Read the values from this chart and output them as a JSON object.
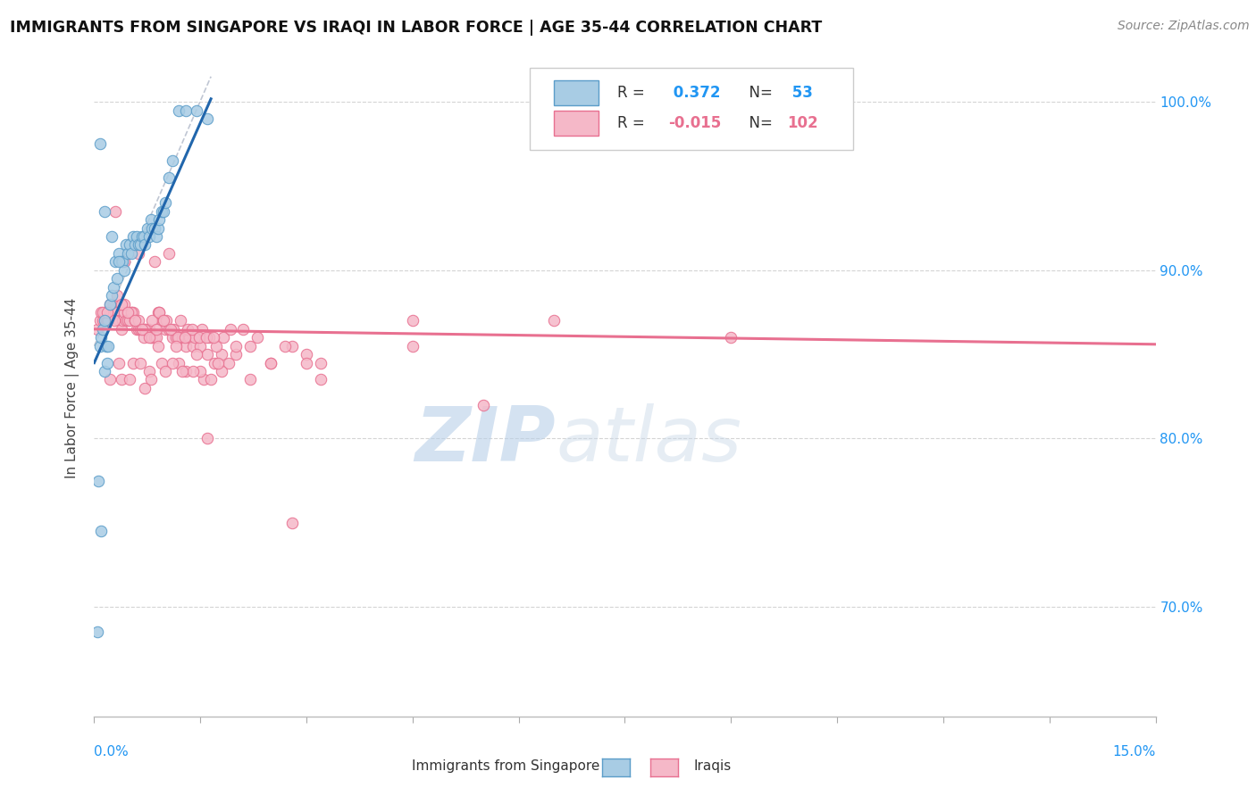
{
  "title": "IMMIGRANTS FROM SINGAPORE VS IRAQI IN LABOR FORCE | AGE 35-44 CORRELATION CHART",
  "source": "Source: ZipAtlas.com",
  "ylabel": "In Labor Force | Age 35-44",
  "xmin": 0.0,
  "xmax": 15.0,
  "ymin": 63.5,
  "ymax": 102.5,
  "yticks": [
    70.0,
    80.0,
    90.0,
    100.0
  ],
  "ytick_labels": [
    "70.0%",
    "80.0%",
    "90.0%",
    "100.0%"
  ],
  "sg_r": "0.372",
  "sg_n": "53",
  "iq_r": "-0.015",
  "iq_n": "102",
  "sg_face_color": "#a8cce4",
  "sg_edge_color": "#5b9dc9",
  "iq_face_color": "#f5b8c8",
  "iq_edge_color": "#e87090",
  "sg_line_color": "#2166ac",
  "iq_line_color": "#e87090",
  "watermark_zip": "ZIP",
  "watermark_atlas": "atlas",
  "sg_x": [
    0.05,
    0.08,
    0.1,
    0.12,
    0.14,
    0.15,
    0.17,
    0.18,
    0.2,
    0.22,
    0.25,
    0.27,
    0.3,
    0.32,
    0.35,
    0.38,
    0.4,
    0.42,
    0.45,
    0.48,
    0.5,
    0.52,
    0.55,
    0.58,
    0.6,
    0.62,
    0.65,
    0.68,
    0.7,
    0.72,
    0.75,
    0.78,
    0.8,
    0.82,
    0.85,
    0.88,
    0.9,
    0.92,
    0.95,
    0.98,
    1.0,
    1.05,
    1.1,
    1.2,
    1.3,
    1.45,
    1.6,
    0.15,
    0.25,
    0.35,
    0.08,
    0.06,
    0.1
  ],
  "sg_y": [
    68.5,
    85.5,
    86.0,
    86.5,
    87.0,
    84.0,
    85.5,
    84.5,
    85.5,
    88.0,
    88.5,
    89.0,
    90.5,
    89.5,
    91.0,
    90.5,
    90.5,
    90.0,
    91.5,
    91.0,
    91.5,
    91.0,
    92.0,
    91.5,
    92.0,
    91.5,
    91.5,
    92.0,
    92.0,
    91.5,
    92.5,
    92.0,
    93.0,
    92.5,
    92.5,
    92.0,
    92.5,
    93.0,
    93.5,
    93.5,
    94.0,
    95.5,
    96.5,
    99.5,
    99.5,
    99.5,
    99.0,
    93.5,
    92.0,
    90.5,
    97.5,
    77.5,
    74.5
  ],
  "iq_x": [
    0.05,
    0.08,
    0.1,
    0.12,
    0.14,
    0.15,
    0.17,
    0.18,
    0.2,
    0.22,
    0.25,
    0.27,
    0.3,
    0.32,
    0.35,
    0.38,
    0.4,
    0.42,
    0.45,
    0.48,
    0.5,
    0.52,
    0.55,
    0.58,
    0.6,
    0.62,
    0.65,
    0.68,
    0.7,
    0.72,
    0.75,
    0.78,
    0.8,
    0.82,
    0.85,
    0.88,
    0.9,
    0.92,
    0.95,
    0.98,
    1.0,
    1.05,
    1.1,
    1.15,
    1.2,
    1.25,
    1.3,
    1.35,
    1.4,
    1.5,
    1.6,
    1.7,
    1.8,
    1.9,
    2.0,
    2.2,
    2.5,
    2.8,
    3.2,
    4.5,
    5.5,
    6.5,
    0.12,
    0.22,
    0.32,
    0.42,
    0.52,
    0.62,
    0.72,
    0.82,
    0.92,
    1.02,
    1.12,
    1.22,
    1.32,
    1.42,
    1.52,
    1.62,
    1.72,
    1.82,
    1.92,
    2.1,
    2.3,
    2.7,
    3.0,
    9.0,
    0.18,
    0.28,
    0.38,
    0.48,
    0.58,
    0.68,
    0.78,
    0.88,
    0.98,
    1.08,
    1.18,
    1.28,
    1.38,
    1.48,
    1.58,
    1.68
  ],
  "iq_y": [
    86.5,
    87.0,
    87.5,
    87.0,
    87.0,
    87.5,
    87.0,
    87.0,
    87.0,
    87.5,
    87.5,
    88.0,
    87.5,
    87.5,
    87.0,
    86.5,
    87.0,
    87.5,
    87.0,
    87.0,
    87.0,
    87.5,
    87.5,
    87.0,
    86.5,
    86.5,
    86.5,
    86.5,
    86.0,
    86.5,
    86.5,
    86.5,
    86.0,
    86.0,
    86.0,
    86.0,
    87.5,
    87.5,
    87.0,
    87.0,
    86.5,
    86.5,
    86.0,
    86.0,
    86.0,
    86.0,
    85.5,
    86.0,
    85.5,
    85.5,
    85.0,
    84.5,
    85.0,
    84.5,
    85.0,
    85.5,
    84.5,
    85.5,
    84.5,
    87.0,
    82.0,
    87.0,
    87.5,
    88.0,
    88.5,
    88.0,
    87.5,
    87.0,
    86.5,
    87.0,
    87.5,
    87.0,
    86.5,
    87.0,
    86.5,
    86.0,
    86.5,
    86.0,
    85.5,
    86.0,
    86.5,
    86.5,
    86.0,
    85.5,
    85.0,
    86.0,
    87.5,
    87.0,
    88.0,
    87.5,
    87.0,
    86.5,
    86.0,
    86.5,
    87.0,
    86.5,
    86.0,
    86.0,
    86.5,
    86.0,
    86.0,
    86.0
  ],
  "iq_outliers_x": [
    0.3,
    0.42,
    0.62,
    0.85,
    1.05,
    1.3,
    1.55,
    1.8,
    2.2,
    4.5,
    1.6,
    0.72,
    2.8,
    0.55,
    0.95,
    1.2,
    1.5,
    0.38,
    0.78,
    1.1,
    1.4,
    3.2,
    0.22,
    0.5,
    0.8,
    1.0,
    1.25,
    1.65,
    0.35,
    0.65,
    0.9,
    1.15,
    1.45,
    1.75,
    2.0,
    2.5,
    3.0
  ],
  "iq_outliers_y": [
    93.5,
    90.5,
    91.0,
    90.5,
    91.0,
    84.0,
    83.5,
    84.0,
    83.5,
    85.5,
    80.0,
    83.0,
    75.0,
    84.5,
    84.5,
    84.5,
    84.0,
    83.5,
    84.0,
    84.5,
    84.0,
    83.5,
    83.5,
    83.5,
    83.5,
    84.0,
    84.0,
    83.5,
    84.5,
    84.5,
    85.5,
    85.5,
    85.0,
    84.5,
    85.5,
    84.5,
    84.5
  ]
}
